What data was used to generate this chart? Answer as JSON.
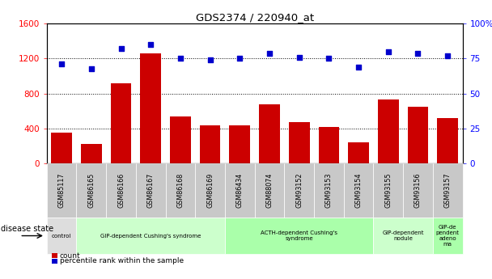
{
  "title": "GDS2374 / 220940_at",
  "samples": [
    "GSM85117",
    "GSM86165",
    "GSM86166",
    "GSM86167",
    "GSM86168",
    "GSM86169",
    "GSM86434",
    "GSM88074",
    "GSM93152",
    "GSM93153",
    "GSM93154",
    "GSM93155",
    "GSM93156",
    "GSM93157"
  ],
  "counts": [
    350,
    220,
    920,
    1260,
    540,
    430,
    430,
    680,
    470,
    420,
    240,
    730,
    650,
    520
  ],
  "percentiles": [
    71,
    68,
    82,
    85,
    75,
    74,
    75,
    79,
    76,
    75,
    69,
    80,
    79,
    77
  ],
  "disease_groups": [
    {
      "label": "control",
      "start": 0,
      "end": 1,
      "color": "#dddddd"
    },
    {
      "label": "GIP-dependent Cushing's syndrome",
      "start": 1,
      "end": 6,
      "color": "#ccffcc"
    },
    {
      "label": "ACTH-dependent Cushing's\nsyndrome",
      "start": 6,
      "end": 11,
      "color": "#aaffaa"
    },
    {
      "label": "GIP-dependent\nnodule",
      "start": 11,
      "end": 13,
      "color": "#ccffcc"
    },
    {
      "label": "GIP-de\npendent\nadeno\nma",
      "start": 13,
      "end": 14,
      "color": "#aaffaa"
    }
  ],
  "bar_color": "#cc0000",
  "dot_color": "#0000cc",
  "ylim_left": [
    0,
    1600
  ],
  "ylim_right": [
    0,
    100
  ],
  "yticks_left": [
    0,
    400,
    800,
    1200,
    1600
  ],
  "yticks_right": [
    0,
    25,
    50,
    75,
    100
  ],
  "grid_values": [
    400,
    800,
    1200
  ],
  "bg_color": "#ffffff",
  "tick_area_color": "#c8c8c8"
}
